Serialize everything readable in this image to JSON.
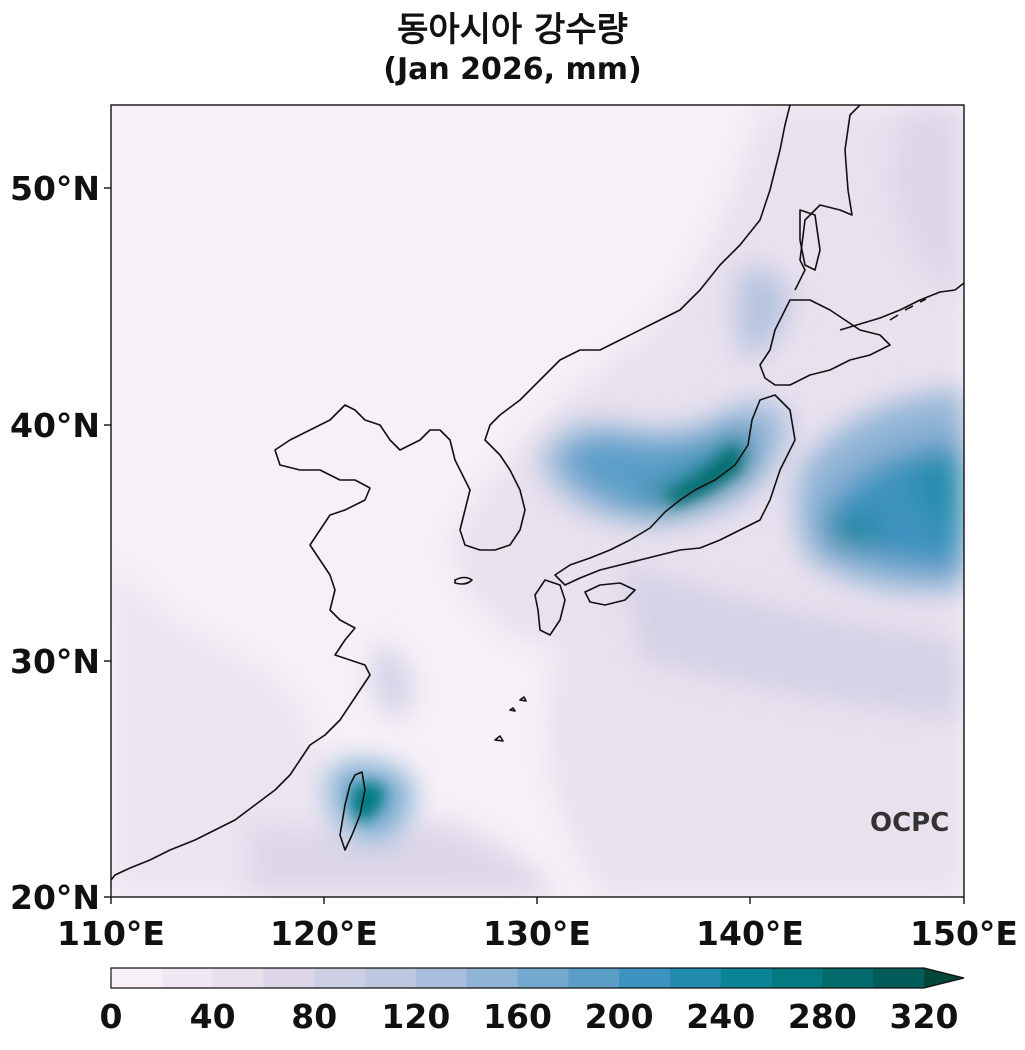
{
  "title_line1": "동아시아 강수량",
  "title_line2": "(Jan 2026, mm)",
  "lat_ticks": [
    "50°N",
    "40°N",
    "30°N",
    "20°N"
  ],
  "lon_ticks": [
    "110°E",
    "120°E",
    "130°E",
    "140°E",
    "150°E"
  ],
  "colorbar": {
    "ticks": [
      "0",
      "40",
      "80",
      "120",
      "160",
      "200",
      "240",
      "280",
      "320"
    ],
    "levels": [
      0,
      20,
      40,
      60,
      80,
      100,
      120,
      140,
      160,
      180,
      200,
      220,
      240,
      260,
      280,
      300,
      320
    ],
    "colors": [
      "#f7f0f7",
      "#efe7f1",
      "#e8e0ec",
      "#dcd6e8",
      "#cdd0e5",
      "#bcc7e0",
      "#a8bedc",
      "#90b4d6",
      "#74a9cf",
      "#5a9ec8",
      "#3d93bf",
      "#238bac",
      "#0c8497",
      "#037a82",
      "#026c6c",
      "#015b58",
      "#014636"
    ]
  },
  "logo_text": "OCPC",
  "map_extent": {
    "lon": [
      110,
      150
    ],
    "lat": [
      20,
      53.5
    ]
  },
  "palette": {
    "background": "#f7f0f7",
    "coast": "#111111"
  }
}
